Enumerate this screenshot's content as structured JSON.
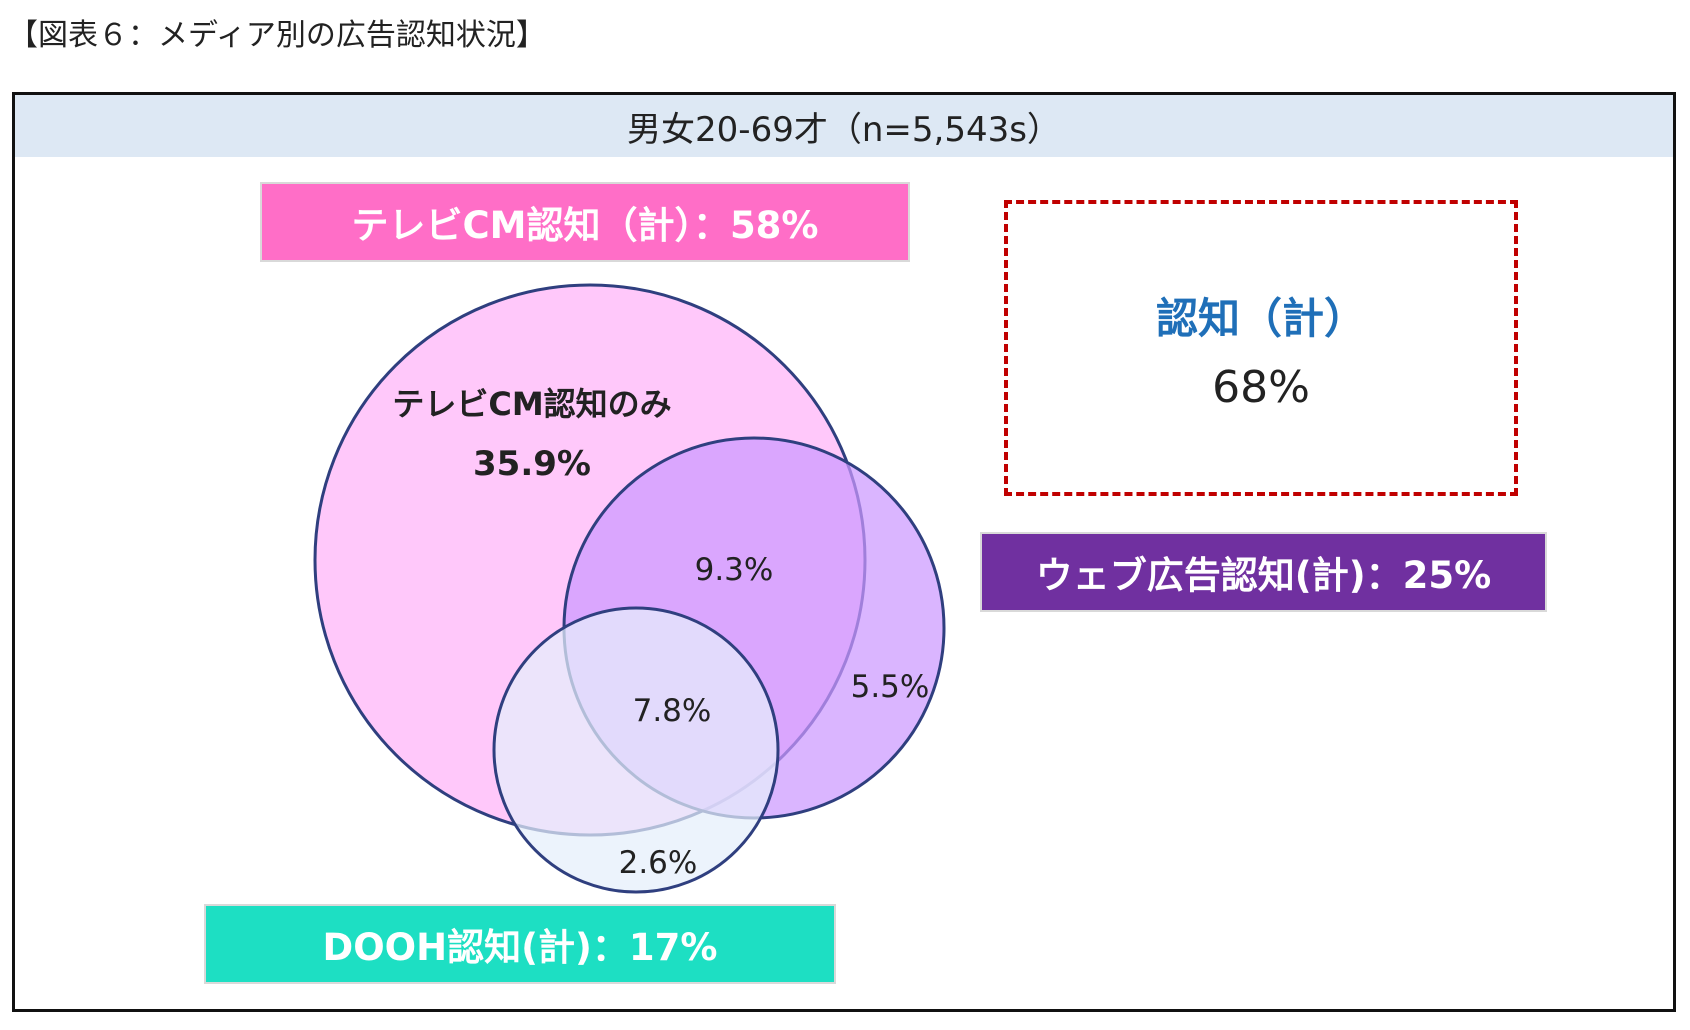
{
  "figure_title": "【図表６：メディア別の広告認知状況】",
  "sample_header": "男女20-69才（n=5,543s）",
  "labels": {
    "tv": "テレビCM認知（計）：58%",
    "web": "ウェブ広告認知(計)：25%",
    "dooh": "DOOH認知(計)：17%"
  },
  "total": {
    "label": "認知（計）",
    "value": "68%"
  },
  "regions": {
    "tv_only_label": "テレビCM認知のみ",
    "tv_only_value": "35.9%",
    "tv_web": "9.3%",
    "web_only": "5.5%",
    "all_three": "7.8%",
    "dooh_only": "2.6%"
  },
  "colors": {
    "tv_fill": "#ffc8fa",
    "web_fill": "#cc99ff",
    "dooh_fill": "#e4eefb",
    "outline": "#2f3f7f",
    "tv_label_bg": "#ff6ec7",
    "web_label_bg": "#7030a0",
    "dooh_label_bg": "#1ddfc3",
    "total_border": "#c00000",
    "total_label": "#1f6fb8"
  }
}
